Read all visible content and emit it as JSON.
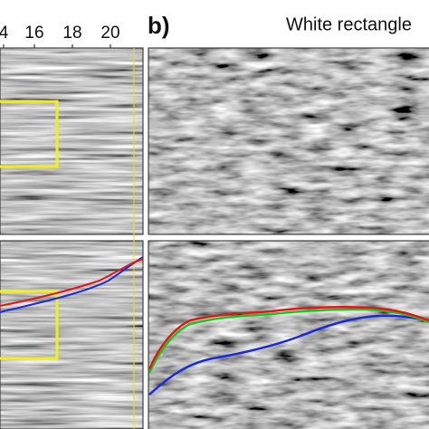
{
  "panel_a": {
    "x_ticks": [
      "4",
      "16",
      "18",
      "20"
    ]
  },
  "panel_b": {
    "label": "b)",
    "title": "White rectangle"
  }
}
